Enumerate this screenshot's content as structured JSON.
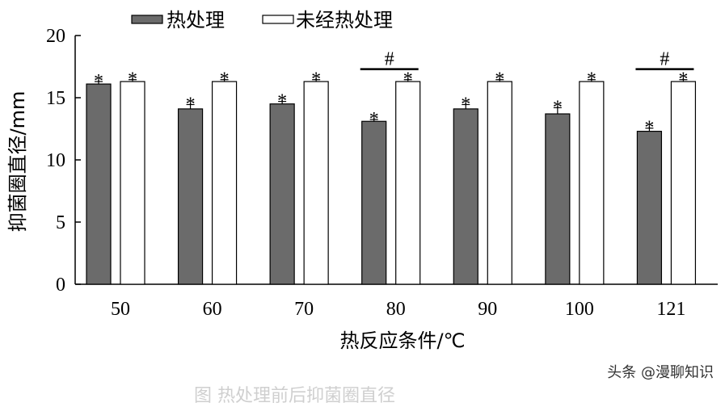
{
  "chart_data": {
    "type": "bar",
    "categories": [
      "50",
      "60",
      "70",
      "80",
      "90",
      "100",
      "121"
    ],
    "series": [
      {
        "name": "热处理",
        "values": [
          16.1,
          14.1,
          14.5,
          13.1,
          14.1,
          13.7,
          12.3
        ],
        "errors": [
          0.2,
          0.35,
          0.2,
          0.15,
          0.35,
          0.5,
          0.25
        ],
        "color": "#6b6b6b"
      },
      {
        "name": "未经热处理",
        "values": [
          16.3,
          16.3,
          16.3,
          16.3,
          16.3,
          16.3,
          16.3
        ],
        "errors": [
          0.15,
          0.15,
          0.15,
          0.15,
          0.15,
          0.15,
          0.15
        ],
        "color": "#ffffff"
      }
    ],
    "star_label": "*",
    "significance_categories": [
      "80",
      "121"
    ],
    "significance_label": "#",
    "xlabel": "热反应条件/℃",
    "ylabel": "抑菌圈直径/mm",
    "ylim": [
      0,
      20
    ],
    "yticks": [
      0,
      5,
      10,
      15,
      20
    ],
    "legend_position": "top-left",
    "grid": false
  },
  "watermark": "头条 @漫聊知识",
  "caption": "图 热处理前后抑菌圈直径"
}
